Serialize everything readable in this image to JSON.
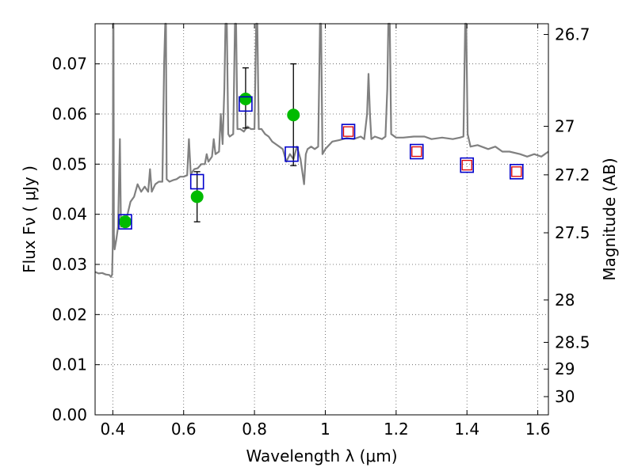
{
  "chart_data": {
    "type": "scatter",
    "xlabel": "Wavelength  λ (μm)",
    "ylabel": "Flux  Fν  ( μJy )",
    "y2label": "Magnitude (AB)",
    "xlim": [
      0.35,
      1.63
    ],
    "ylim": [
      0.0,
      0.078
    ],
    "grid": true,
    "x_ticks": [
      0.4,
      0.6,
      0.8,
      1.0,
      1.2,
      1.4,
      1.6
    ],
    "x_tick_labels": [
      "0.4",
      "0.6",
      "0.8",
      "1",
      "1.2",
      "1.4",
      "1.6"
    ],
    "y_ticks": [
      0.0,
      0.01,
      0.02,
      0.03,
      0.04,
      0.05,
      0.06,
      0.07
    ],
    "y_tick_labels": [
      "0.00",
      "0.01",
      "0.02",
      "0.03",
      "0.04",
      "0.05",
      "0.06",
      "0.07"
    ],
    "mag_ticks": [
      26.7,
      27,
      27.2,
      27.5,
      28,
      28.5,
      29,
      30
    ],
    "mag_tick_labels": [
      "26.7",
      "27",
      "27.2",
      "27.5",
      "28",
      "28.5",
      "29",
      "30"
    ],
    "colors": {
      "spectrum": "#808080",
      "observed": "#00bb00",
      "model_box": "#0000cc",
      "prediction_box": "#dd0000",
      "errorbar": "#000000"
    },
    "series": [
      {
        "kind": "spectrum-line",
        "points": [
          [
            0.35,
            0.0285
          ],
          [
            0.36,
            0.0282
          ],
          [
            0.37,
            0.0283
          ],
          [
            0.38,
            0.028
          ],
          [
            0.39,
            0.0279
          ],
          [
            0.395,
            0.0275
          ],
          [
            0.398,
            0.028
          ],
          [
            0.4,
            0.034
          ],
          [
            0.401,
            0.079
          ],
          [
            0.402,
            0.079
          ],
          [
            0.403,
            0.036
          ],
          [
            0.405,
            0.033
          ],
          [
            0.41,
            0.035
          ],
          [
            0.415,
            0.0375
          ],
          [
            0.42,
            0.055
          ],
          [
            0.423,
            0.0375
          ],
          [
            0.43,
            0.038
          ],
          [
            0.44,
            0.0395
          ],
          [
            0.45,
            0.0425
          ],
          [
            0.46,
            0.0435
          ],
          [
            0.47,
            0.046
          ],
          [
            0.48,
            0.0445
          ],
          [
            0.49,
            0.0455
          ],
          [
            0.5,
            0.0445
          ],
          [
            0.505,
            0.049
          ],
          [
            0.51,
            0.0445
          ],
          [
            0.52,
            0.046
          ],
          [
            0.53,
            0.0465
          ],
          [
            0.54,
            0.0465
          ],
          [
            0.545,
            0.07
          ],
          [
            0.548,
            0.079
          ],
          [
            0.55,
            0.079
          ],
          [
            0.552,
            0.047
          ],
          [
            0.56,
            0.0465
          ],
          [
            0.57,
            0.0468
          ],
          [
            0.58,
            0.047
          ],
          [
            0.59,
            0.0475
          ],
          [
            0.6,
            0.0475
          ],
          [
            0.61,
            0.0478
          ],
          [
            0.615,
            0.055
          ],
          [
            0.62,
            0.048
          ],
          [
            0.63,
            0.049
          ],
          [
            0.64,
            0.0492
          ],
          [
            0.65,
            0.05
          ],
          [
            0.66,
            0.05
          ],
          [
            0.665,
            0.052
          ],
          [
            0.67,
            0.0505
          ],
          [
            0.68,
            0.0515
          ],
          [
            0.685,
            0.055
          ],
          [
            0.69,
            0.052
          ],
          [
            0.7,
            0.0525
          ],
          [
            0.705,
            0.06
          ],
          [
            0.71,
            0.054
          ],
          [
            0.715,
            0.065
          ],
          [
            0.718,
            0.079
          ],
          [
            0.722,
            0.079
          ],
          [
            0.726,
            0.056
          ],
          [
            0.73,
            0.0555
          ],
          [
            0.74,
            0.056
          ],
          [
            0.745,
            0.079
          ],
          [
            0.748,
            0.079
          ],
          [
            0.752,
            0.057
          ],
          [
            0.76,
            0.057
          ],
          [
            0.77,
            0.0565
          ],
          [
            0.78,
            0.0575
          ],
          [
            0.79,
            0.057
          ],
          [
            0.8,
            0.057
          ],
          [
            0.805,
            0.079
          ],
          [
            0.808,
            0.079
          ],
          [
            0.812,
            0.057
          ],
          [
            0.82,
            0.057
          ],
          [
            0.83,
            0.056
          ],
          [
            0.84,
            0.0555
          ],
          [
            0.85,
            0.0545
          ],
          [
            0.86,
            0.054
          ],
          [
            0.87,
            0.0535
          ],
          [
            0.88,
            0.053
          ],
          [
            0.89,
            0.0505
          ],
          [
            0.9,
            0.052
          ],
          [
            0.91,
            0.051
          ],
          [
            0.92,
            0.0535
          ],
          [
            0.93,
            0.051
          ],
          [
            0.94,
            0.046
          ],
          [
            0.945,
            0.052
          ],
          [
            0.95,
            0.053
          ],
          [
            0.96,
            0.0535
          ],
          [
            0.97,
            0.053
          ],
          [
            0.98,
            0.0535
          ],
          [
            0.985,
            0.079
          ],
          [
            0.988,
            0.079
          ],
          [
            0.992,
            0.052
          ],
          [
            1.0,
            0.053
          ],
          [
            1.02,
            0.0545
          ],
          [
            1.04,
            0.0548
          ],
          [
            1.06,
            0.0552
          ],
          [
            1.08,
            0.055
          ],
          [
            1.1,
            0.0555
          ],
          [
            1.11,
            0.055
          ],
          [
            1.118,
            0.06
          ],
          [
            1.122,
            0.068
          ],
          [
            1.126,
            0.06
          ],
          [
            1.13,
            0.055
          ],
          [
            1.14,
            0.0555
          ],
          [
            1.16,
            0.055
          ],
          [
            1.17,
            0.0555
          ],
          [
            1.175,
            0.065
          ],
          [
            1.178,
            0.079
          ],
          [
            1.182,
            0.079
          ],
          [
            1.186,
            0.056
          ],
          [
            1.2,
            0.0553
          ],
          [
            1.22,
            0.0553
          ],
          [
            1.25,
            0.0555
          ],
          [
            1.28,
            0.0555
          ],
          [
            1.3,
            0.055
          ],
          [
            1.33,
            0.0553
          ],
          [
            1.36,
            0.055
          ],
          [
            1.38,
            0.0553
          ],
          [
            1.39,
            0.0555
          ],
          [
            1.395,
            0.079
          ],
          [
            1.398,
            0.079
          ],
          [
            1.402,
            0.056
          ],
          [
            1.41,
            0.0535
          ],
          [
            1.43,
            0.0538
          ],
          [
            1.46,
            0.053
          ],
          [
            1.48,
            0.0535
          ],
          [
            1.5,
            0.0525
          ],
          [
            1.52,
            0.0525
          ],
          [
            1.55,
            0.052
          ],
          [
            1.57,
            0.0515
          ],
          [
            1.59,
            0.052
          ],
          [
            1.61,
            0.0515
          ],
          [
            1.63,
            0.0525
          ]
        ]
      },
      {
        "kind": "observed-points",
        "points": [
          {
            "x": 0.435,
            "y": 0.0385
          },
          {
            "x": 0.638,
            "y": 0.0435,
            "yerr_low": 0.0385,
            "yerr_high": 0.0485
          },
          {
            "x": 0.775,
            "y": 0.063,
            "yerr_low": 0.0572,
            "yerr_high": 0.0692
          },
          {
            "x": 0.91,
            "y": 0.0598,
            "yerr_low": 0.0497,
            "yerr_high": 0.07
          }
        ]
      },
      {
        "kind": "model-boxes",
        "points": [
          {
            "x": 0.435,
            "y": 0.0385
          },
          {
            "x": 0.638,
            "y": 0.0465
          },
          {
            "x": 0.775,
            "y": 0.062
          },
          {
            "x": 0.905,
            "y": 0.052
          },
          {
            "x": 1.065,
            "y": 0.0565
          },
          {
            "x": 1.258,
            "y": 0.0525
          },
          {
            "x": 1.4,
            "y": 0.0498
          },
          {
            "x": 1.54,
            "y": 0.0485
          }
        ]
      },
      {
        "kind": "prediction-boxes",
        "points": [
          {
            "x": 1.065,
            "y": 0.0565
          },
          {
            "x": 1.258,
            "y": 0.0525
          },
          {
            "x": 1.4,
            "y": 0.0498
          },
          {
            "x": 1.54,
            "y": 0.0485
          }
        ]
      }
    ]
  }
}
